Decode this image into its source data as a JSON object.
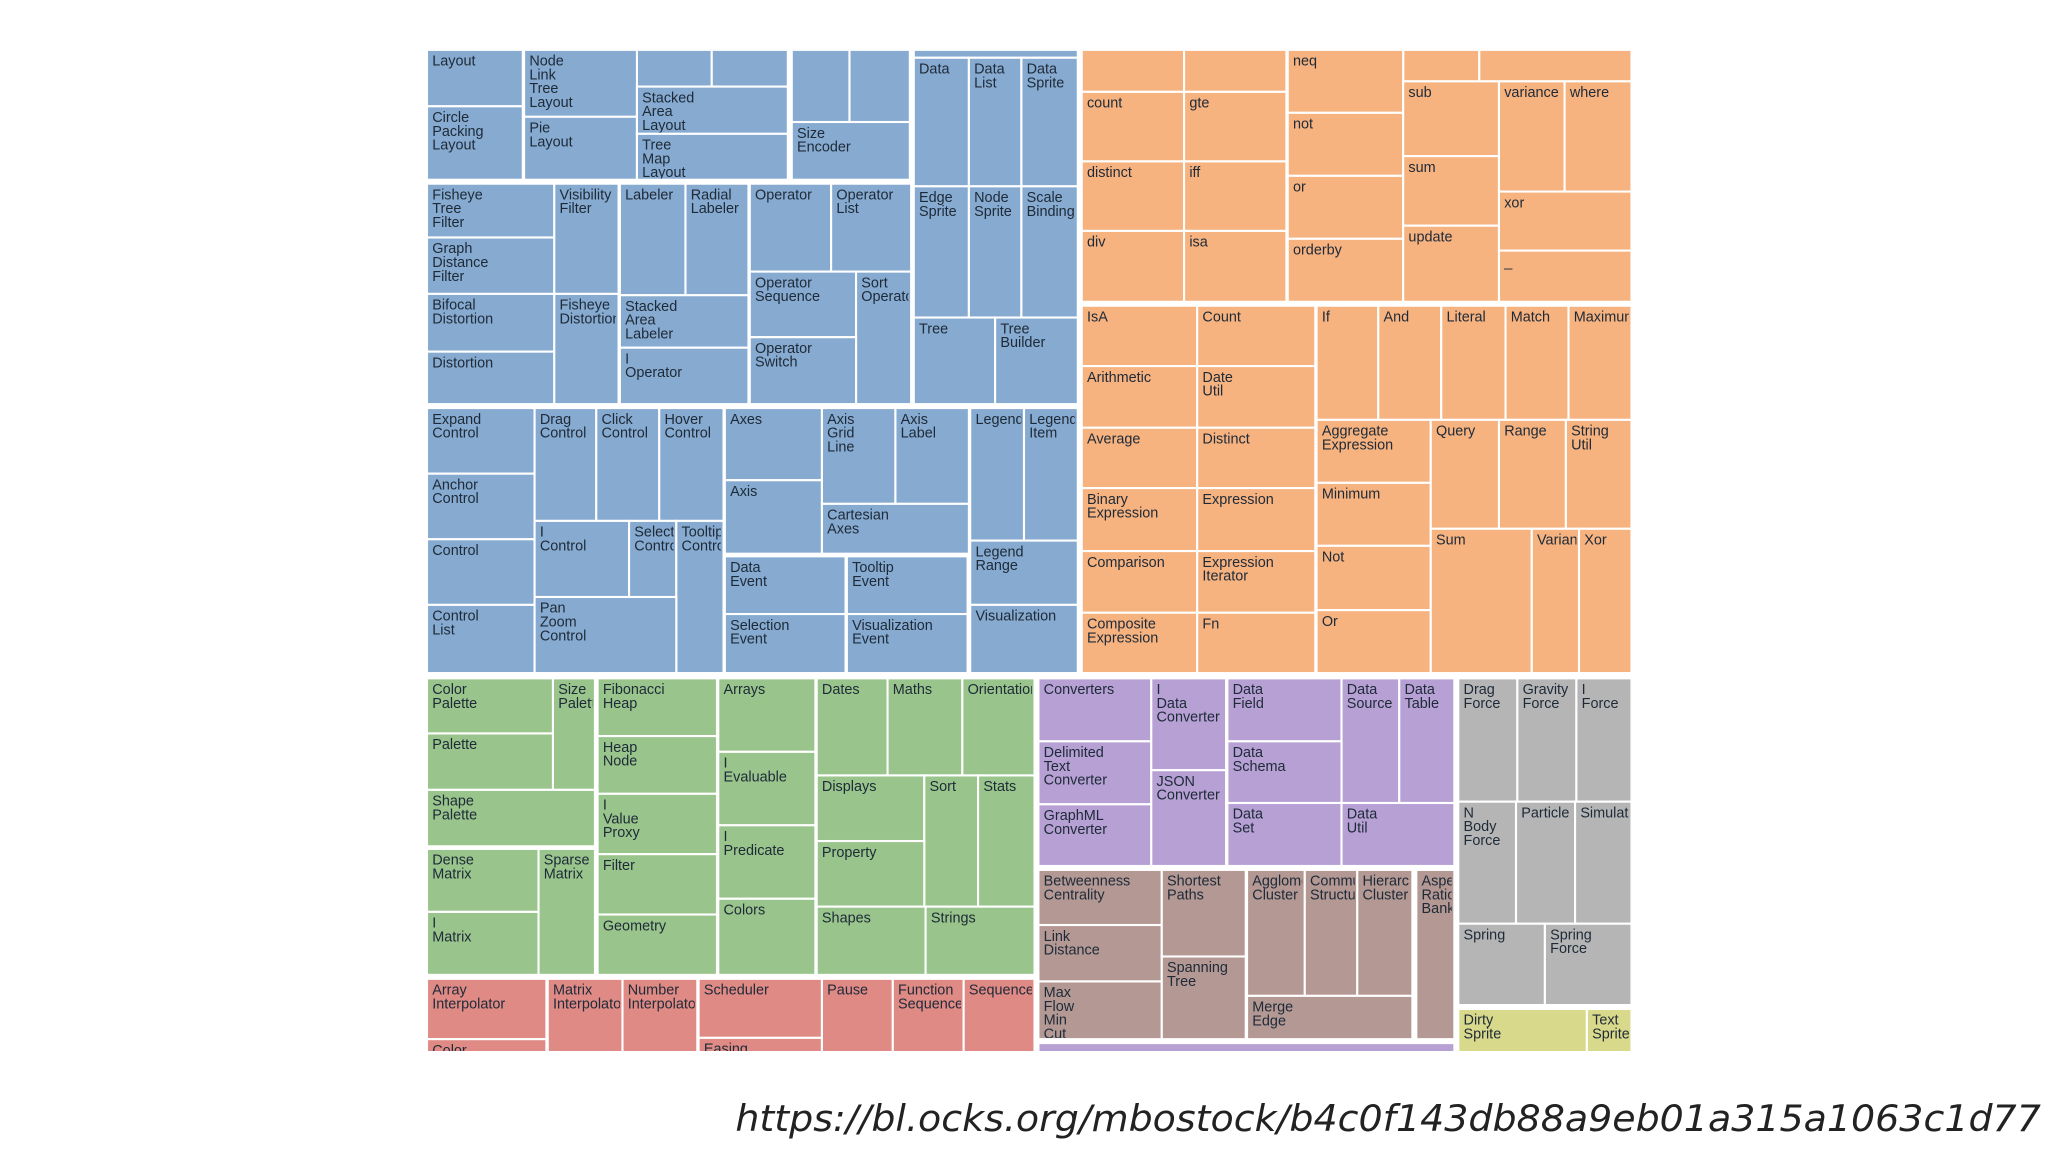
{
  "groups": [
    {
      "color": "#86aad0",
      "cells": [
        "Layout",
        "Circle Packing Layout",
        "Node Link Tree Layout",
        "Pie Layout",
        "Stacked Area Layout",
        "Tree Map Layout",
        "Size Encoder",
        "Data",
        "Data List",
        "Data Sprite",
        "Edge Sprite",
        "Node Sprite",
        "Scale Binding",
        "Tree",
        "Tree Builder",
        "Fisheye Tree Filter",
        "Graph Distance Filter",
        "Visibility Filter",
        "Bifocal Distortion",
        "Distortion",
        "Fisheye Distortion",
        "Labeler",
        "Radial Labeler",
        "Stacked Area Labeler",
        "I Operator",
        "Operator",
        "Operator List",
        "Operator Sequence",
        "Sort Operator",
        "Operator Switch",
        "Expand Control",
        "Anchor Control",
        "Control",
        "Control List",
        "Drag Control",
        "Click Control",
        "Hover Control",
        "I Control",
        "Selection Control",
        "Tooltip Control",
        "Pan Zoom Control",
        "Axes",
        "Axis",
        "Axis Grid Line",
        "Axis Label",
        "Cartesian Axes",
        "Data Event",
        "Selection Event",
        "Tooltip Event",
        "Visualization Event",
        "Legend",
        "Legend Item",
        "Legend Range",
        "Visualization"
      ]
    },
    {
      "color": "#f6b27f",
      "cells": [
        "count",
        "gte",
        "distinct",
        "iff",
        "div",
        "isa",
        "neq",
        "not",
        "or",
        "orderby",
        "sub",
        "sum",
        "update",
        "variance",
        "where",
        "xor",
        "_",
        "IsA",
        "Count",
        "Arithmetic",
        "Date Util",
        "Average",
        "Distinct",
        "Binary Expression",
        "Expression",
        "Comparison",
        "Expression Iterator",
        "Composite Expression",
        "Fn",
        "If",
        "And",
        "Literal",
        "Match",
        "Maximum",
        "Aggregate Expression",
        "Minimum",
        "Not",
        "Or",
        "Query",
        "Range",
        "String Util",
        "Sum",
        "Variance",
        "Xor"
      ]
    },
    {
      "color": "#99c48b",
      "cells": [
        "Color Palette",
        "Palette",
        "Size Palette",
        "Shape Palette",
        "Dense Matrix",
        "I Matrix",
        "Sparse Matrix",
        "Fibonacci Heap",
        "Heap Node",
        "I Value Proxy",
        "Filter",
        "Geometry",
        "Arrays",
        "I Evaluable",
        "I Predicate",
        "Colors",
        "Dates",
        "Maths",
        "Orientation",
        "Displays",
        "Sort",
        "Stats",
        "Property",
        "Shapes",
        "Strings"
      ]
    },
    {
      "color": "#df8a84",
      "cells": [
        "Array Interpolator",
        "Color",
        "Matrix Interpolator",
        "Number Interpolator",
        "Scheduler",
        "Easing",
        "Pause",
        "Function Sequence",
        "Sequence"
      ]
    },
    {
      "color": "#b6a0d4",
      "cells": [
        "Converters",
        "Delimited Text Converter",
        "GraphML Converter",
        "I Data Converter",
        "JSON Converter",
        "Data Field",
        "Data Source",
        "Data Table",
        "Data Schema",
        "Data Set",
        "Data Util"
      ]
    },
    {
      "color": "#b39893",
      "cells": [
        "Betweenness Centrality",
        "Link Distance",
        "Max Flow Min Cut",
        "Shortest Paths",
        "Spanning Tree",
        "Agglomerative Cluster",
        "Community Structure",
        "Hierarchical Cluster",
        "Merge Edge",
        "Aspect Ratio Banker"
      ]
    },
    {
      "color": "#b5b5b5",
      "cells": [
        "Drag Force",
        "Gravity Force",
        "I Force",
        "N Body Force",
        "Particle",
        "Simulation",
        "Spring",
        "Spring Force"
      ]
    },
    {
      "color": "#d9d98b",
      "cells": [
        "Dirty Sprite",
        "Text Sprite"
      ]
    }
  ],
  "url": "https://bl.ocks.org/mbostock/b4c0f143db88a9eb01a315a1063c1d77"
}
